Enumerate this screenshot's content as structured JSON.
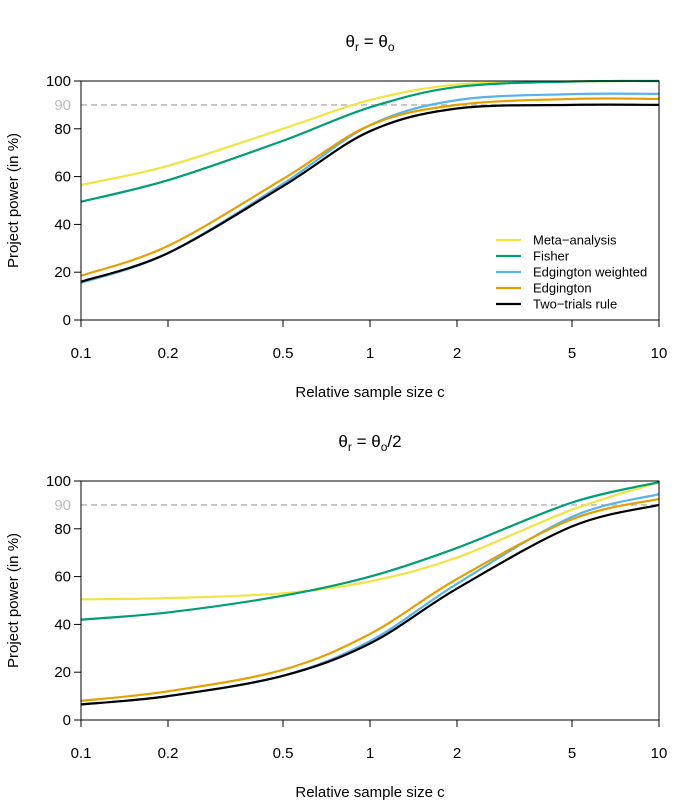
{
  "chart_data": [
    {
      "type": "line",
      "title": "θr = θo",
      "title_parts": {
        "sym": "θ",
        "sub1": "r",
        "eq": " = ",
        "sub2": "o",
        "suffix": ""
      },
      "xlabel": "Relative sample size c",
      "ylabel": "Project power (in %)",
      "x_scale": "log",
      "xlim": [
        0.1,
        10
      ],
      "ylim": [
        0,
        100
      ],
      "x_ticks": [
        0.1,
        0.2,
        0.5,
        1,
        2,
        5,
        10
      ],
      "y_ticks": [
        0,
        20,
        40,
        60,
        80,
        100
      ],
      "reference_line": {
        "y": 90,
        "label": "90",
        "color": "#bdbdbd",
        "style": "dashed"
      },
      "legend": {
        "position": "bottom-right"
      },
      "x": [
        0.1,
        0.2,
        0.5,
        1,
        2,
        5,
        10
      ],
      "series": [
        {
          "name": "Meta−analysis",
          "color": "#f0e442",
          "values": [
            56.5,
            64.5,
            80,
            92,
            98.5,
            99.8,
            100
          ]
        },
        {
          "name": "Fisher",
          "color": "#009e73",
          "values": [
            49.5,
            58.5,
            75,
            89,
            97.5,
            99.8,
            100
          ]
        },
        {
          "name": "Edgington weighted",
          "color": "#56b4e9",
          "values": [
            15.5,
            28,
            57,
            81.5,
            92,
            94.5,
            94.6
          ]
        },
        {
          "name": "Edgington",
          "color": "#e69f00",
          "values": [
            18.5,
            31,
            59,
            81.5,
            90,
            92.5,
            92.5
          ]
        },
        {
          "name": "Two−trials rule",
          "color": "#000000",
          "values": [
            16,
            28,
            56,
            79,
            88.5,
            90,
            90
          ]
        }
      ]
    },
    {
      "type": "line",
      "title": "θr = θo/2",
      "title_parts": {
        "sym": "θ",
        "sub1": "r",
        "eq": " = ",
        "sub2": "o",
        "suffix": "/2"
      },
      "xlabel": "Relative sample size c",
      "ylabel": "Project power (in %)",
      "x_scale": "log",
      "xlim": [
        0.1,
        10
      ],
      "ylim": [
        0,
        100
      ],
      "x_ticks": [
        0.1,
        0.2,
        0.5,
        1,
        2,
        5,
        10
      ],
      "y_ticks": [
        0,
        20,
        40,
        60,
        80,
        100
      ],
      "reference_line": {
        "y": 90,
        "label": "90",
        "color": "#bdbdbd",
        "style": "dashed"
      },
      "x": [
        0.1,
        0.2,
        0.5,
        1,
        2,
        5,
        10
      ],
      "series": [
        {
          "name": "Meta−analysis",
          "color": "#f0e442",
          "values": [
            50.5,
            51,
            53,
            58,
            68,
            88,
            99.5
          ]
        },
        {
          "name": "Fisher",
          "color": "#009e73",
          "values": [
            42,
            45,
            52,
            60,
            72,
            91,
            99.5
          ]
        },
        {
          "name": "Edgington weighted",
          "color": "#56b4e9",
          "values": [
            6.5,
            10,
            18.5,
            33,
            57,
            85,
            94.5
          ]
        },
        {
          "name": "Edgington",
          "color": "#e69f00",
          "values": [
            8,
            12,
            21,
            36,
            59,
            84,
            92.5
          ]
        },
        {
          "name": "Two−trials rule",
          "color": "#000000",
          "values": [
            6.5,
            10,
            18.5,
            32,
            55,
            81,
            90
          ]
        }
      ]
    }
  ]
}
